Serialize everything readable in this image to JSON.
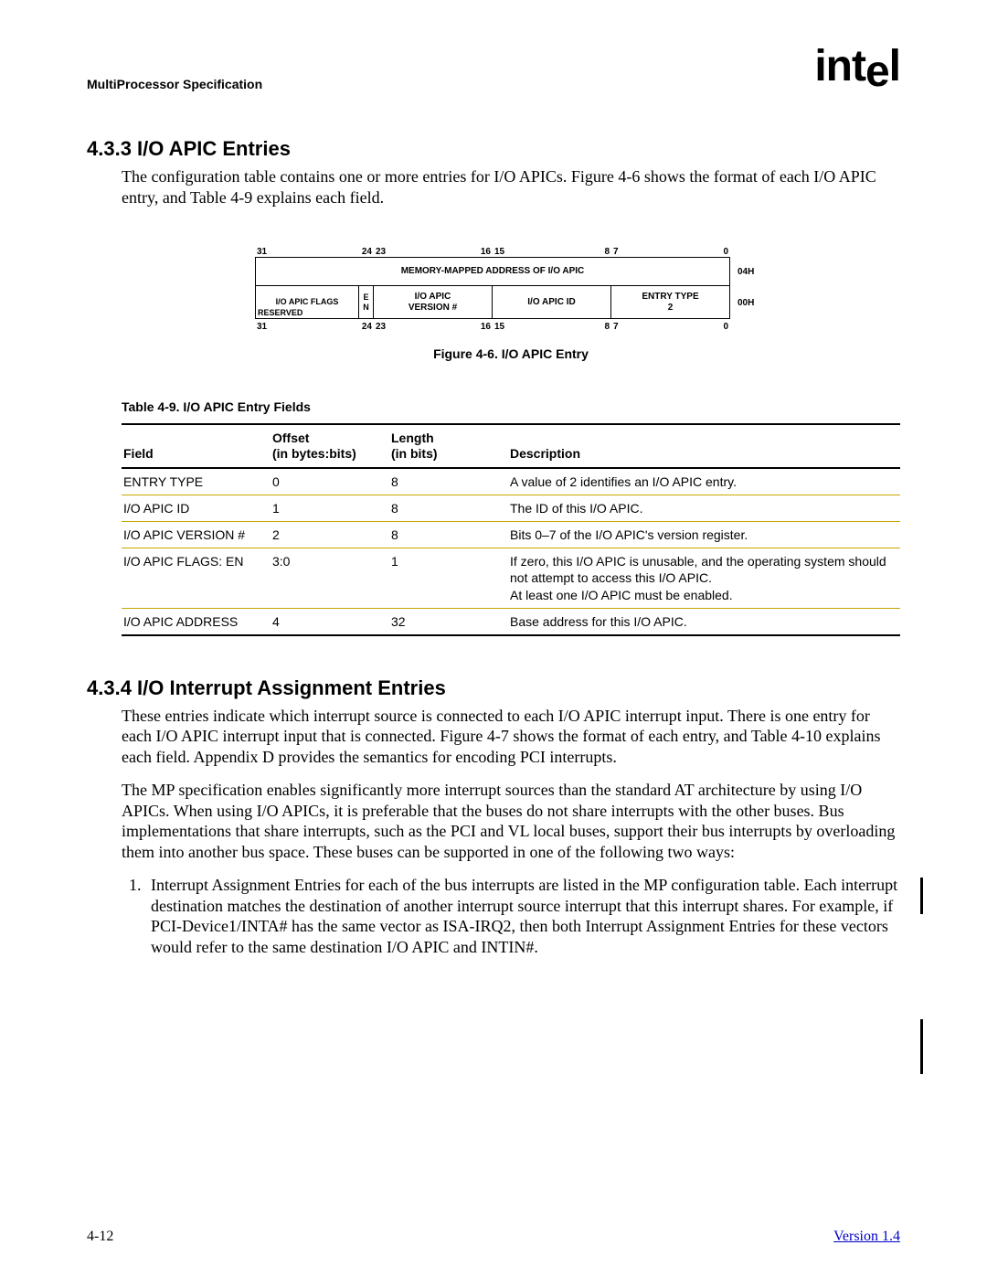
{
  "header": {
    "doc_title": "MultiProcessor Specification",
    "logo": "intel"
  },
  "section1": {
    "num_title": "4.3.3  I/O APIC Entries",
    "para": "The configuration table contains one or more entries for I/O APICs.  Figure 4-6 shows the format of each I/O APIC entry, and Table 4-9 explains each field."
  },
  "figure": {
    "caption": "Figure 4-6.  I/O APIC Entry",
    "bit_labels_top": [
      "31",
      "24",
      "23",
      "16",
      "15",
      "8",
      "7",
      "0"
    ],
    "row1": {
      "text": "MEMORY-MAPPED ADDRESS OF I/O APIC",
      "offset": "04H"
    },
    "row2": {
      "c1_top": "I/O APIC FLAGS",
      "c1_bl": "RESERVED",
      "c1_e": "E",
      "c1_n": "N",
      "c2_top": "I/O APIC",
      "c2_bot": "VERSION #",
      "c3": "I/O APIC ID",
      "c4_top": "ENTRY TYPE",
      "c4_bot": "2",
      "offset": "00H"
    },
    "bit_labels_bot": [
      "31",
      "24",
      "23",
      "16",
      "15",
      "8",
      "7",
      "0"
    ]
  },
  "table": {
    "caption": "Table 4-9.  I/O APIC Entry Fields",
    "headers": {
      "field": "Field",
      "offset_l1": "Offset",
      "offset_l2": "(in bytes:bits)",
      "length_l1": "Length",
      "length_l2": "(in bits)",
      "desc": "Description"
    },
    "rows": [
      {
        "field": "ENTRY TYPE",
        "offset": "0",
        "length": "8",
        "desc": "A value of 2 identifies an I/O APIC entry."
      },
      {
        "field": "I/O APIC ID",
        "offset": "1",
        "length": "8",
        "desc": "The ID of this I/O APIC."
      },
      {
        "field": "I/O APIC VERSION #",
        "offset": "2",
        "length": "8",
        "desc": "Bits 0–7 of the I/O APIC's version register."
      },
      {
        "field": "I/O APIC FLAGS: EN",
        "offset": "3:0",
        "length": "1",
        "desc": "If zero, this I/O APIC is unusable, and the operating system should not attempt to access this I/O APIC.\nAt least one I/O APIC must be enabled."
      },
      {
        "field": "I/O APIC ADDRESS",
        "offset": "4",
        "length": "32",
        "desc": "Base address for this I/O APIC."
      }
    ]
  },
  "section2": {
    "num_title": "4.3.4  I/O Interrupt Assignment Entries",
    "para1": "These entries indicate which interrupt source is connected to each I/O APIC interrupt input.  There is one entry for each I/O APIC interrupt input that is connected.  Figure 4-7 shows the format of each entry, and Table 4-10 explains each field.  Appendix D provides the semantics for encoding PCI interrupts.",
    "para2": "The MP specification enables significantly more interrupt sources than the standard AT architecture by using I/O APICs.  When using I/O APICs, it is preferable that the buses do not share interrupts with the other buses.  Bus implementations that share interrupts, such as the PCI and VL local buses, support their bus interrupts by overloading them into another bus space.  These buses can be supported in one of the following two ways:",
    "li1_a": "Interrupt Assignment Entries for each of the bus interrupts are listed in the MP configuration table.  Each interrupt destination matches the destination of another interrupt source interrupt that this interrupt shares.  For example, if PCI",
    "li1_link": "-Device1/INTA#",
    "li1_b": " has the same vector as ISA-IRQ2, then both Interrupt Assignment Entries for these vectors would refer to the same destination I/O APIC and INTIN#."
  },
  "footer": {
    "page": "4-12",
    "version": "Version 1.4"
  },
  "style": {
    "yellow": "#c9a800",
    "link": "#0000cc"
  }
}
